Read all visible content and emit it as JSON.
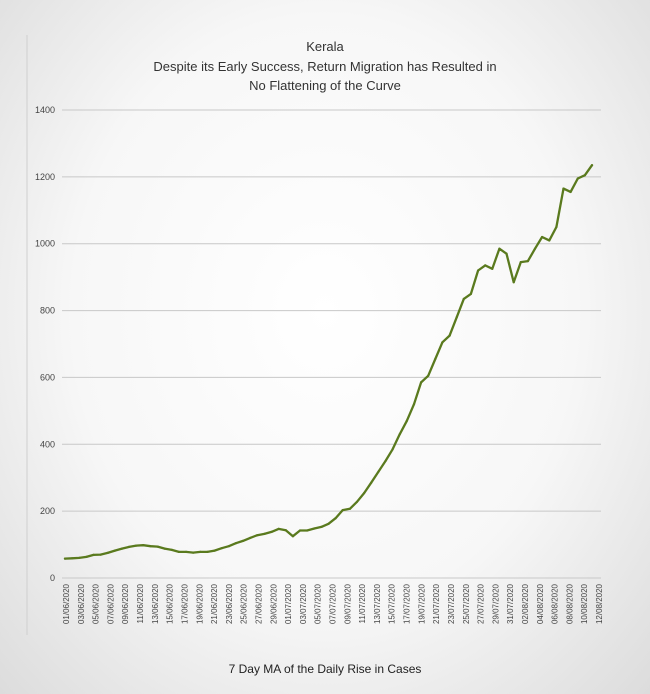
{
  "chart_data": {
    "type": "line",
    "title_lines": [
      "Kerala",
      "Despite its Early Success, Return Migration has Resulted in",
      "No Flattening of the Curve"
    ],
    "caption": "7 Day MA of the Daily Rise in Cases",
    "ylim": [
      0,
      1400
    ],
    "yticks": [
      "0",
      "200",
      "400",
      "600",
      "800",
      "1000",
      "1200",
      "1400"
    ],
    "xtick_labels": [
      "01/06/2020",
      "03/06/2020",
      "05/06/2020",
      "07/06/2020",
      "09/06/2020",
      "11/06/2020",
      "13/06/2020",
      "15/06/2020",
      "17/06/2020",
      "19/06/2020",
      "21/06/2020",
      "23/06/2020",
      "25/06/2020",
      "27/06/2020",
      "29/06/2020",
      "01/07/2020",
      "03/07/2020",
      "05/07/2020",
      "07/07/2020",
      "09/07/2020",
      "11/07/2020",
      "13/07/2020",
      "15/07/2020",
      "17/07/2020",
      "19/07/2020",
      "21/07/2020",
      "23/07/2020",
      "25/07/2020",
      "27/07/2020",
      "29/07/2020",
      "31/07/2020",
      "02/08/2020",
      "04/08/2020",
      "06/08/2020",
      "08/08/2020",
      "10/08/2020",
      "12/08/2020"
    ],
    "line_color": "#5a7a1e",
    "series": [
      {
        "name": "7 Day MA",
        "values": [
          58,
          59,
          60,
          63,
          69,
          70,
          75,
          82,
          88,
          93,
          97,
          98,
          95,
          94,
          88,
          84,
          78,
          78,
          76,
          78,
          78,
          82,
          89,
          95,
          104,
          111,
          120,
          128,
          132,
          138,
          147,
          143,
          125,
          142,
          142,
          148,
          153,
          162,
          179,
          203,
          207,
          228,
          254,
          285,
          318,
          350,
          385,
          430,
          470,
          520,
          585,
          605,
          655,
          705,
          725,
          780,
          835,
          850,
          920,
          935,
          925,
          985,
          970,
          885,
          945,
          948,
          985,
          1020,
          1010,
          1050,
          1165,
          1155,
          1195,
          1205,
          1235
        ]
      }
    ]
  }
}
